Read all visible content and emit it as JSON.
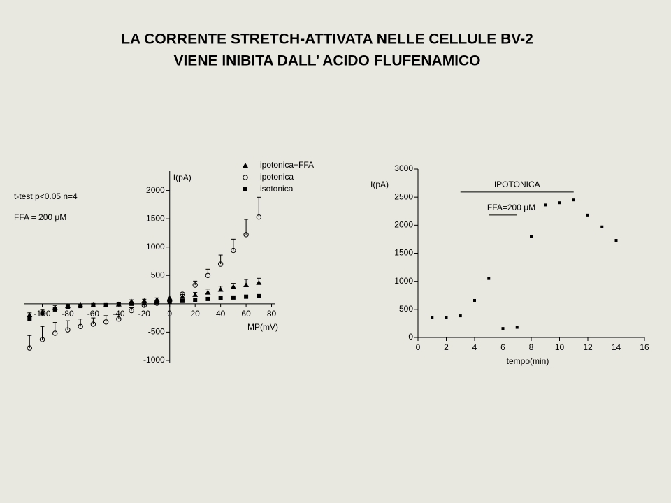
{
  "title": [
    "LA  CORRENTE STRETCH-ATTIVATA  NELLE  CELLULE BV-2",
    "VIENE  INIBITA  DALL’ ACIDO FLUFENAMICO"
  ],
  "chart_data": [
    {
      "type": "scatter",
      "ylabel": "I(pA)",
      "xlabel": "MP(mV)",
      "annotations": [
        "t-test p<0.05  n=4",
        "FFA = 200 μM"
      ],
      "legend": "top-right",
      "xlim": [
        -114,
        83
      ],
      "ylim": [
        -1050,
        2340
      ],
      "xticks": [
        -100,
        -80,
        -60,
        -40,
        -20,
        0,
        20,
        40,
        60,
        80
      ],
      "yticks": [
        -1000,
        -500,
        500,
        1000,
        1500,
        2000
      ],
      "x": [
        -110,
        -100,
        -90,
        -80,
        -70,
        -60,
        -50,
        -40,
        -30,
        -20,
        -10,
        0,
        10,
        20,
        30,
        40,
        50,
        60,
        70
      ],
      "series": [
        {
          "name": "ipotonica+FFA",
          "marker": "triangle",
          "color": "#000000",
          "values": [
            -200,
            -150,
            -70,
            -40,
            -25,
            -25,
            -25,
            -10,
            40,
            50,
            75,
            100,
            125,
            160,
            200,
            250,
            300,
            330,
            370
          ],
          "errors": [
            40,
            40,
            40,
            30,
            20,
            20,
            20,
            20,
            30,
            30,
            30,
            40,
            40,
            40,
            60,
            60,
            60,
            100,
            80
          ]
        },
        {
          "name": "ipotonica",
          "marker": "circle",
          "color": "#000000",
          "values": [
            -780,
            -630,
            -520,
            -460,
            -400,
            -360,
            -320,
            -270,
            -120,
            -25,
            10,
            50,
            170,
            330,
            500,
            700,
            940,
            1220,
            1530
          ],
          "errors": [
            220,
            230,
            190,
            160,
            130,
            110,
            110,
            90,
            50,
            20,
            20,
            20,
            20,
            70,
            110,
            160,
            200,
            270,
            350
          ]
        },
        {
          "name": "isotonica",
          "marker": "square",
          "color": "#000000",
          "values": [
            -270,
            -170,
            -100,
            -60,
            -40,
            -25,
            -25,
            -10,
            0,
            10,
            25,
            40,
            50,
            60,
            85,
            100,
            110,
            125,
            135
          ]
        }
      ]
    },
    {
      "type": "scatter",
      "ylabel": "I(pA)",
      "xlabel": "tempo(min)",
      "xlim": [
        0,
        16
      ],
      "ylim": [
        0,
        3000
      ],
      "xticks": [
        0,
        2,
        4,
        6,
        8,
        10,
        12,
        14,
        16
      ],
      "yticks": [
        0,
        500,
        1000,
        1500,
        2000,
        2500,
        3000
      ],
      "x": [
        1,
        2,
        3,
        4,
        5,
        6,
        7,
        8,
        9,
        10,
        11,
        12,
        13,
        14
      ],
      "series": [
        {
          "marker": "square",
          "color": "#000000",
          "values": [
            355,
            355,
            385,
            660,
            1050,
            160,
            180,
            1800,
            2360,
            2400,
            2450,
            2180,
            1970,
            1730
          ]
        }
      ],
      "spans": [
        {
          "label": "IPOTONICA",
          "x": [
            3,
            11
          ],
          "y": 2590
        },
        {
          "label": "FFA=200 μM",
          "x": [
            5,
            7
          ],
          "y": 2180
        }
      ]
    }
  ]
}
